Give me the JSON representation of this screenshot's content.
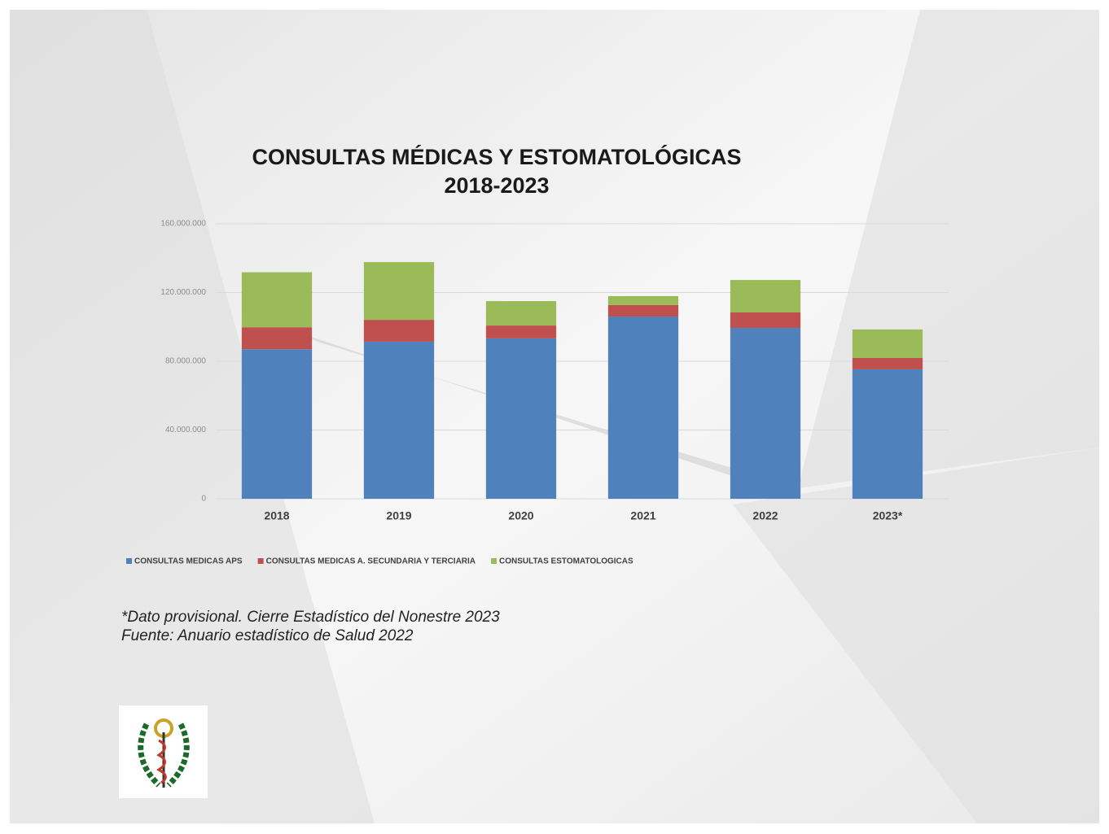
{
  "chart_data": {
    "type": "stacked_bar",
    "title": "CONSULTAS MÉDICAS Y ESTOMATOLÓGICAS",
    "subtitle": "2018-2023",
    "categories": [
      "2018",
      "2019",
      "2020",
      "2021",
      "2022",
      "2023*"
    ],
    "series": [
      {
        "name": "CONSULTAS MEDICAS APS",
        "color": "#4f81bd",
        "values": [
          87000000,
          91400000,
          93300000,
          106000000,
          99400000,
          75300000
        ]
      },
      {
        "name": "CONSULTAS MEDICAS A. SECUNDARIA Y TERCIARIA",
        "color": "#c0504d",
        "values": [
          12800000,
          12700000,
          7500000,
          6700000,
          9000000,
          6600000
        ]
      },
      {
        "name": "CONSULTAS ESTOMATOLOGICAS",
        "color": "#9bbb59",
        "values": [
          32000000,
          33600000,
          14200000,
          5200000,
          18900000,
          16600000
        ]
      }
    ],
    "ylim": [
      0,
      160000000
    ],
    "yticks": [
      0,
      {
        "value": 40000000,
        "label": "40.000.000"
      },
      {
        "value": 80000000,
        "label": "80.000.000"
      },
      {
        "value": 120000000,
        "label": "120.000.000"
      },
      {
        "value": 160000000,
        "label": "160.000.000"
      }
    ],
    "grid": true,
    "legend": "bottom",
    "notes": [
      "*Dato provisional. Cierre Estadístico del Nonestre 2023",
      "Fuente: Anuario estadístico de Salud 2022"
    ]
  }
}
